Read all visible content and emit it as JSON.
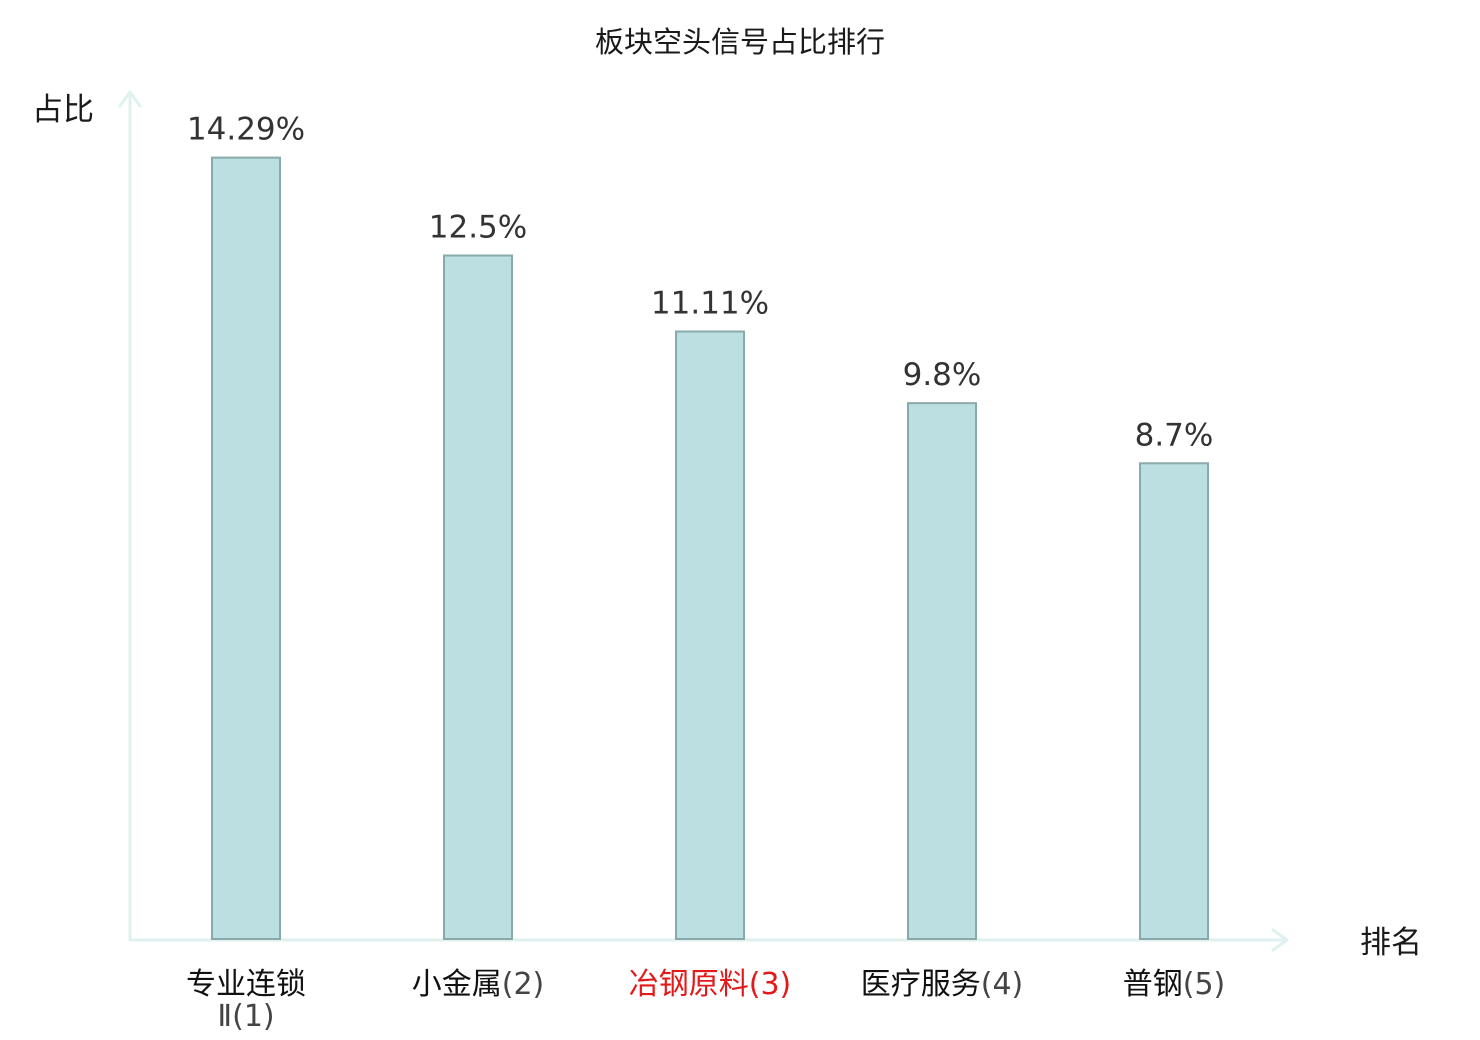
{
  "chart_data": {
    "type": "bar",
    "title": "板块空头信号占比排行",
    "ylabel": "占比",
    "xlabel": "排名",
    "ylim": [
      0,
      15.6
    ],
    "grid": false,
    "legend": "none",
    "categories": [
      {
        "name": "专业连锁Ⅱ",
        "rank": "(1)",
        "highlight": false
      },
      {
        "name": "小金属",
        "rank": "(2)",
        "highlight": false
      },
      {
        "name": "冶钢原料",
        "rank": "(3)",
        "highlight": true
      },
      {
        "name": "医疗服务",
        "rank": "(4)",
        "highlight": false
      },
      {
        "name": "普钢",
        "rank": "(5)",
        "highlight": false
      }
    ],
    "values": [
      14.29,
      12.5,
      11.11,
      9.8,
      8.7
    ],
    "value_labels": [
      "14.29%",
      "12.5%",
      "11.11%",
      "9.8%",
      "8.7%"
    ]
  },
  "colors": {
    "bar_fill": "#bce0e2",
    "bar_stroke": "#8aa9aa",
    "axis": "#dff2ef",
    "highlight_text": "#e31a1a"
  }
}
